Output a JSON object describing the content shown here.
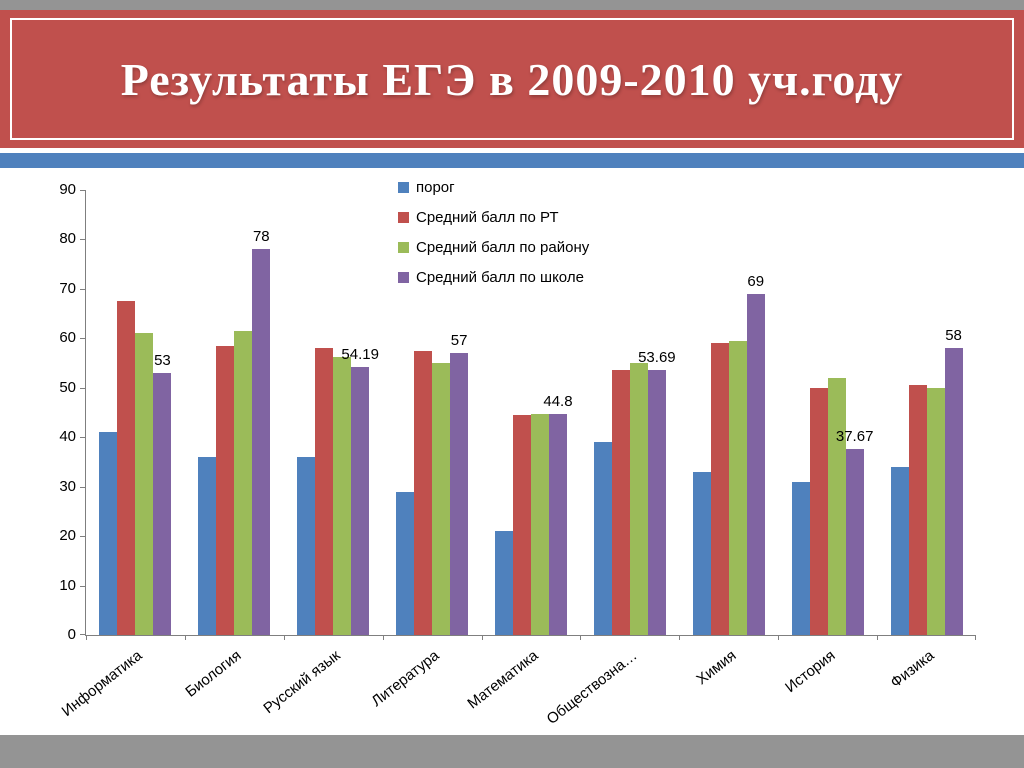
{
  "title": "Результаты ЕГЭ в 2009-2010 уч.году",
  "theme": {
    "banner_color": "#c0504d",
    "stripe_color": "#4f81bd",
    "background_color": "#949494",
    "sheet_color": "#ffffff"
  },
  "chart_data": {
    "type": "bar",
    "title": "Результаты ЕГЭ в 2009-2010 уч.году",
    "xlabel": "",
    "ylabel": "",
    "ylim": [
      0,
      90
    ],
    "ytick_step": 10,
    "grid": false,
    "legend_position": "top-center-vertical",
    "categories": [
      "Информатика",
      "Биология",
      "Русский язык",
      "Литература",
      "Математика",
      "Обществозна…",
      "Химия",
      "История",
      "Физика"
    ],
    "series": [
      {
        "name": "порог",
        "color": "#4f81bd",
        "values": [
          41,
          36,
          36,
          29,
          21,
          39,
          33,
          31,
          34
        ]
      },
      {
        "name": "Средний балл по РТ",
        "color": "#c0504d",
        "values": [
          67.5,
          58.5,
          58,
          57.5,
          44.5,
          53.5,
          59,
          50,
          50.5
        ]
      },
      {
        "name": "Средний балл по району",
        "color": "#9bbb59",
        "values": [
          61,
          61.5,
          56.2,
          55,
          44.8,
          55,
          59.5,
          52,
          50
        ]
      },
      {
        "name": "Средний балл по школе",
        "color": "#8064a2",
        "values": [
          53,
          78,
          54.19,
          57,
          44.8,
          53.69,
          69,
          37.67,
          58
        ],
        "labels": [
          "53",
          "78",
          "54.19",
          "57",
          "44.8",
          "53.69",
          "69",
          "37.67",
          "58"
        ]
      }
    ]
  }
}
